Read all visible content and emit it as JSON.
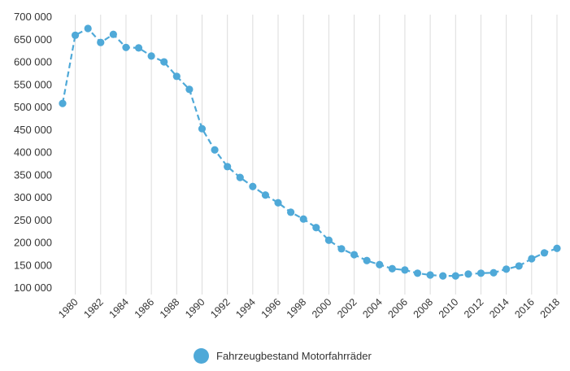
{
  "chart_data": {
    "type": "line",
    "title": "",
    "xlabel": "",
    "ylabel": "",
    "ylim": [
      100000,
      700000
    ],
    "yticks": [
      "100 000",
      "150 000",
      "200 000",
      "250 000",
      "300 000",
      "350 000",
      "400 000",
      "450 000",
      "500 000",
      "550 000",
      "600 000",
      "650 000",
      "700 000"
    ],
    "xticks": [
      "1980",
      "1982",
      "1984",
      "1986",
      "1988",
      "1990",
      "1992",
      "1994",
      "1996",
      "1998",
      "2000",
      "2002",
      "2004",
      "2006",
      "2008",
      "2010",
      "2012",
      "2014",
      "2016",
      "2018"
    ],
    "grid": "vertical",
    "legend_position": "bottom",
    "color": "#4fa9d8",
    "x": [
      1979,
      1980,
      1981,
      1982,
      1983,
      1984,
      1985,
      1986,
      1987,
      1988,
      1989,
      1990,
      1991,
      1992,
      1993,
      1994,
      1995,
      1996,
      1997,
      1998,
      1999,
      2000,
      2001,
      2002,
      2003,
      2004,
      2005,
      2006,
      2007,
      2008,
      2009,
      2010,
      2011,
      2012,
      2013,
      2014,
      2015,
      2016,
      2017,
      2018
    ],
    "series": [
      {
        "name": "Fahrzeugbestand Motorfahrräder",
        "values": [
          507000,
          658000,
          673000,
          642000,
          660000,
          631000,
          630000,
          612000,
          599000,
          567000,
          538000,
          451000,
          404000,
          367000,
          343000,
          323000,
          304000,
          287000,
          266000,
          251000,
          232000,
          204000,
          185000,
          172000,
          159000,
          150000,
          141000,
          138000,
          131000,
          127000,
          125000,
          125000,
          129000,
          131000,
          132000,
          140000,
          147000,
          163000,
          176000,
          186000
        ]
      }
    ]
  }
}
